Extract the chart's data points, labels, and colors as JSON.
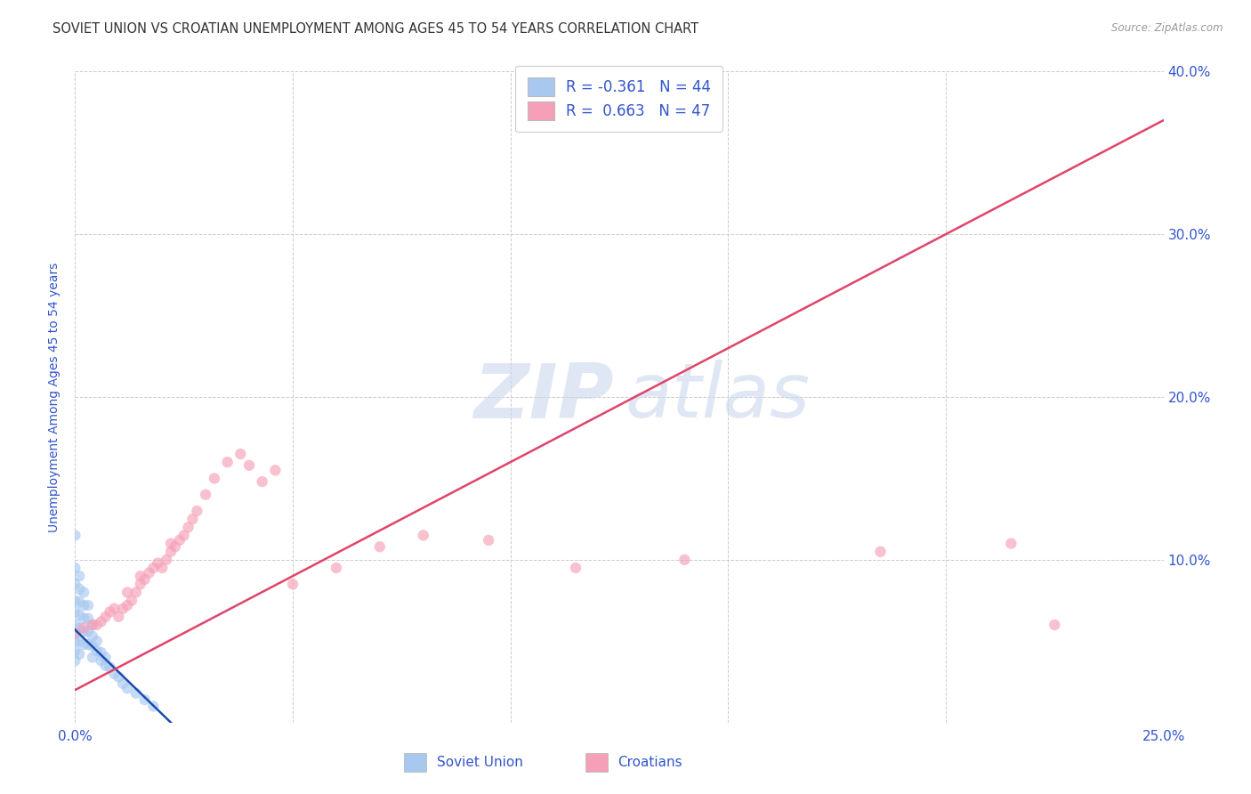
{
  "title": "SOVIET UNION VS CROATIAN UNEMPLOYMENT AMONG AGES 45 TO 54 YEARS CORRELATION CHART",
  "source": "Source: ZipAtlas.com",
  "ylabel": "Unemployment Among Ages 45 to 54 years",
  "watermark_zip": "ZIP",
  "watermark_atlas": "atlas",
  "R_soviet": -0.361,
  "N_soviet": 44,
  "R_croatian": 0.663,
  "N_croatian": 47,
  "xmin": 0.0,
  "xmax": 0.25,
  "ymin": 0.0,
  "ymax": 0.4,
  "x_ticks": [
    0.0,
    0.05,
    0.1,
    0.15,
    0.2,
    0.25
  ],
  "y_ticks": [
    0.0,
    0.1,
    0.2,
    0.3,
    0.4
  ],
  "soviet_x": [
    0.0,
    0.0,
    0.0,
    0.0,
    0.0,
    0.0,
    0.0,
    0.0,
    0.0,
    0.0,
    0.001,
    0.001,
    0.001,
    0.001,
    0.001,
    0.001,
    0.001,
    0.002,
    0.002,
    0.002,
    0.002,
    0.002,
    0.003,
    0.003,
    0.003,
    0.003,
    0.004,
    0.004,
    0.004,
    0.004,
    0.005,
    0.005,
    0.006,
    0.006,
    0.007,
    0.007,
    0.008,
    0.009,
    0.01,
    0.011,
    0.012,
    0.014,
    0.016,
    0.018
  ],
  "soviet_y": [
    0.115,
    0.095,
    0.085,
    0.075,
    0.068,
    0.06,
    0.055,
    0.05,
    0.044,
    0.038,
    0.09,
    0.082,
    0.074,
    0.066,
    0.058,
    0.05,
    0.042,
    0.08,
    0.072,
    0.064,
    0.056,
    0.048,
    0.072,
    0.064,
    0.056,
    0.048,
    0.06,
    0.053,
    0.047,
    0.04,
    0.05,
    0.044,
    0.043,
    0.038,
    0.04,
    0.035,
    0.034,
    0.03,
    0.028,
    0.024,
    0.021,
    0.018,
    0.014,
    0.01
  ],
  "croatian_x": [
    0.0,
    0.002,
    0.004,
    0.005,
    0.006,
    0.007,
    0.008,
    0.009,
    0.01,
    0.011,
    0.012,
    0.012,
    0.013,
    0.014,
    0.015,
    0.015,
    0.016,
    0.017,
    0.018,
    0.019,
    0.02,
    0.021,
    0.022,
    0.022,
    0.023,
    0.024,
    0.025,
    0.026,
    0.027,
    0.028,
    0.03,
    0.032,
    0.035,
    0.038,
    0.04,
    0.043,
    0.046,
    0.05,
    0.06,
    0.07,
    0.08,
    0.095,
    0.115,
    0.14,
    0.185,
    0.215,
    0.225
  ],
  "croatian_y": [
    0.055,
    0.058,
    0.06,
    0.06,
    0.062,
    0.065,
    0.068,
    0.07,
    0.065,
    0.07,
    0.072,
    0.08,
    0.075,
    0.08,
    0.085,
    0.09,
    0.088,
    0.092,
    0.095,
    0.098,
    0.095,
    0.1,
    0.105,
    0.11,
    0.108,
    0.112,
    0.115,
    0.12,
    0.125,
    0.13,
    0.14,
    0.15,
    0.16,
    0.165,
    0.158,
    0.148,
    0.155,
    0.085,
    0.095,
    0.108,
    0.115,
    0.112,
    0.095,
    0.1,
    0.105,
    0.11,
    0.06
  ],
  "soviet_line_color": "#1a4db0",
  "croatian_line_color": "#e0446a",
  "soviet_color": "#a8c8f0",
  "croatian_color": "#f5a0b8",
  "bg_color": "#ffffff",
  "grid_color": "#cccccc",
  "text_color": "#3355cc",
  "title_color": "#333333",
  "source_color": "#999999",
  "scatter_alpha": 0.65,
  "scatter_size": 80,
  "title_fontsize": 10.5,
  "tick_fontsize": 11,
  "ylabel_fontsize": 10
}
